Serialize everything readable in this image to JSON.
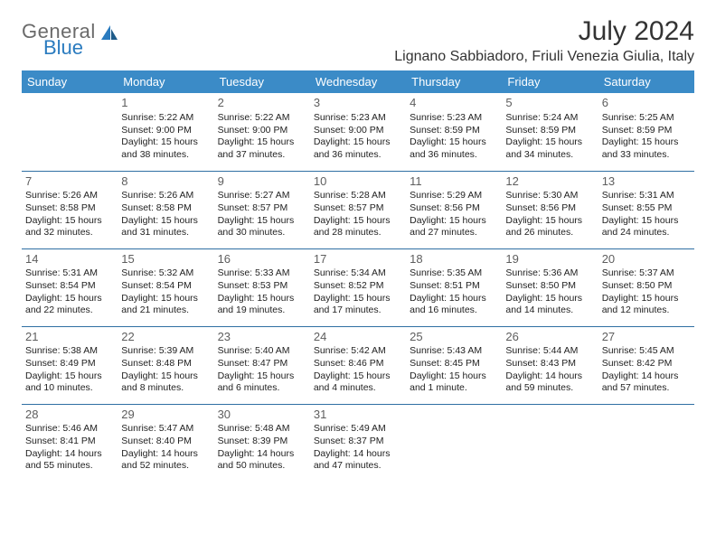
{
  "logo": {
    "text1": "General",
    "text2": "Blue",
    "icon_color": "#2a7bbf",
    "text1_color": "#6a6a6a"
  },
  "title": "July 2024",
  "location": "Lignano Sabbiadoro, Friuli Venezia Giulia, Italy",
  "header_bg": "#3b8bc7",
  "header_fg": "#ffffff",
  "border_color": "#2f6fa3",
  "weekdays": [
    "Sunday",
    "Monday",
    "Tuesday",
    "Wednesday",
    "Thursday",
    "Friday",
    "Saturday"
  ],
  "weeks": [
    [
      null,
      {
        "n": "1",
        "sr": "5:22 AM",
        "ss": "9:00 PM",
        "dl": "15 hours and 38 minutes."
      },
      {
        "n": "2",
        "sr": "5:22 AM",
        "ss": "9:00 PM",
        "dl": "15 hours and 37 minutes."
      },
      {
        "n": "3",
        "sr": "5:23 AM",
        "ss": "9:00 PM",
        "dl": "15 hours and 36 minutes."
      },
      {
        "n": "4",
        "sr": "5:23 AM",
        "ss": "8:59 PM",
        "dl": "15 hours and 36 minutes."
      },
      {
        "n": "5",
        "sr": "5:24 AM",
        "ss": "8:59 PM",
        "dl": "15 hours and 34 minutes."
      },
      {
        "n": "6",
        "sr": "5:25 AM",
        "ss": "8:59 PM",
        "dl": "15 hours and 33 minutes."
      }
    ],
    [
      {
        "n": "7",
        "sr": "5:26 AM",
        "ss": "8:58 PM",
        "dl": "15 hours and 32 minutes."
      },
      {
        "n": "8",
        "sr": "5:26 AM",
        "ss": "8:58 PM",
        "dl": "15 hours and 31 minutes."
      },
      {
        "n": "9",
        "sr": "5:27 AM",
        "ss": "8:57 PM",
        "dl": "15 hours and 30 minutes."
      },
      {
        "n": "10",
        "sr": "5:28 AM",
        "ss": "8:57 PM",
        "dl": "15 hours and 28 minutes."
      },
      {
        "n": "11",
        "sr": "5:29 AM",
        "ss": "8:56 PM",
        "dl": "15 hours and 27 minutes."
      },
      {
        "n": "12",
        "sr": "5:30 AM",
        "ss": "8:56 PM",
        "dl": "15 hours and 26 minutes."
      },
      {
        "n": "13",
        "sr": "5:31 AM",
        "ss": "8:55 PM",
        "dl": "15 hours and 24 minutes."
      }
    ],
    [
      {
        "n": "14",
        "sr": "5:31 AM",
        "ss": "8:54 PM",
        "dl": "15 hours and 22 minutes."
      },
      {
        "n": "15",
        "sr": "5:32 AM",
        "ss": "8:54 PM",
        "dl": "15 hours and 21 minutes."
      },
      {
        "n": "16",
        "sr": "5:33 AM",
        "ss": "8:53 PM",
        "dl": "15 hours and 19 minutes."
      },
      {
        "n": "17",
        "sr": "5:34 AM",
        "ss": "8:52 PM",
        "dl": "15 hours and 17 minutes."
      },
      {
        "n": "18",
        "sr": "5:35 AM",
        "ss": "8:51 PM",
        "dl": "15 hours and 16 minutes."
      },
      {
        "n": "19",
        "sr": "5:36 AM",
        "ss": "8:50 PM",
        "dl": "15 hours and 14 minutes."
      },
      {
        "n": "20",
        "sr": "5:37 AM",
        "ss": "8:50 PM",
        "dl": "15 hours and 12 minutes."
      }
    ],
    [
      {
        "n": "21",
        "sr": "5:38 AM",
        "ss": "8:49 PM",
        "dl": "15 hours and 10 minutes."
      },
      {
        "n": "22",
        "sr": "5:39 AM",
        "ss": "8:48 PM",
        "dl": "15 hours and 8 minutes."
      },
      {
        "n": "23",
        "sr": "5:40 AM",
        "ss": "8:47 PM",
        "dl": "15 hours and 6 minutes."
      },
      {
        "n": "24",
        "sr": "5:42 AM",
        "ss": "8:46 PM",
        "dl": "15 hours and 4 minutes."
      },
      {
        "n": "25",
        "sr": "5:43 AM",
        "ss": "8:45 PM",
        "dl": "15 hours and 1 minute."
      },
      {
        "n": "26",
        "sr": "5:44 AM",
        "ss": "8:43 PM",
        "dl": "14 hours and 59 minutes."
      },
      {
        "n": "27",
        "sr": "5:45 AM",
        "ss": "8:42 PM",
        "dl": "14 hours and 57 minutes."
      }
    ],
    [
      {
        "n": "28",
        "sr": "5:46 AM",
        "ss": "8:41 PM",
        "dl": "14 hours and 55 minutes."
      },
      {
        "n": "29",
        "sr": "5:47 AM",
        "ss": "8:40 PM",
        "dl": "14 hours and 52 minutes."
      },
      {
        "n": "30",
        "sr": "5:48 AM",
        "ss": "8:39 PM",
        "dl": "14 hours and 50 minutes."
      },
      {
        "n": "31",
        "sr": "5:49 AM",
        "ss": "8:37 PM",
        "dl": "14 hours and 47 minutes."
      },
      null,
      null,
      null
    ]
  ],
  "labels": {
    "sunrise": "Sunrise: ",
    "sunset": "Sunset: ",
    "daylight": "Daylight: "
  }
}
